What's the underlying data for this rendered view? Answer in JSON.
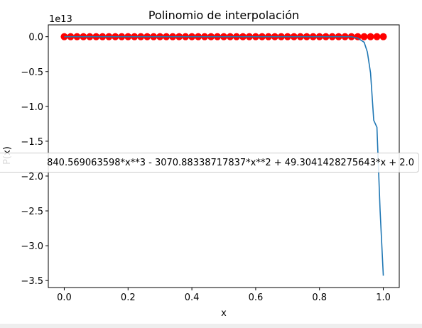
{
  "chart_data": {
    "type": "scatter",
    "title": "Polinomio de interpolación",
    "xlabel": "x",
    "ylabel": "P(x)",
    "offset_text": "1e13",
    "xlim": [
      -0.05,
      1.05
    ],
    "ylim": [
      -3.6,
      0.17
    ],
    "x_ticks": [
      0.0,
      0.2,
      0.4,
      0.6,
      0.8,
      1.0
    ],
    "x_tick_labels": [
      "0.0",
      "0.2",
      "0.4",
      "0.6",
      "0.8",
      "1.0"
    ],
    "y_ticks": [
      0.0,
      -0.5,
      -1.0,
      -1.5,
      -2.0,
      -2.5,
      -3.0,
      -3.5
    ],
    "y_tick_labels": [
      "0.0",
      "−0.5",
      "−1.0",
      "−1.5",
      "−2.0",
      "−2.5",
      "−3.0",
      "−3.5"
    ],
    "legend_label": "840.569063598*x**3 - 3070.88338717837*x**2 + 49.3041428275643*x + 2.0",
    "series": [
      {
        "kind": "scatter",
        "color": "#ff0000",
        "x": [
          0.0,
          0.02,
          0.04,
          0.06,
          0.08,
          0.1,
          0.12,
          0.14,
          0.16,
          0.18,
          0.2,
          0.22,
          0.24,
          0.26,
          0.28,
          0.3,
          0.32,
          0.34,
          0.36,
          0.38,
          0.4,
          0.42,
          0.44,
          0.46,
          0.48,
          0.5,
          0.52,
          0.54,
          0.56,
          0.58,
          0.6,
          0.62,
          0.64,
          0.66,
          0.68,
          0.7,
          0.72,
          0.74,
          0.76,
          0.78,
          0.8,
          0.82,
          0.84,
          0.86,
          0.88,
          0.9,
          0.92,
          0.94,
          0.96,
          0.98,
          1.0
        ],
        "y": [
          0,
          0,
          0,
          0,
          0,
          0,
          0,
          0,
          0,
          0,
          0,
          0,
          0,
          0,
          0,
          0,
          0,
          0,
          0,
          0,
          0,
          0,
          0,
          0,
          0,
          0,
          0,
          0,
          0,
          0,
          0,
          0,
          0,
          0,
          0,
          0,
          0,
          0,
          0,
          0,
          0,
          0,
          0,
          0,
          0,
          0,
          0,
          0,
          0,
          0,
          0
        ]
      },
      {
        "kind": "line",
        "color": "#1f77b4",
        "x": [
          0.0,
          0.1,
          0.2,
          0.3,
          0.4,
          0.5,
          0.6,
          0.7,
          0.8,
          0.85,
          0.9,
          0.92,
          0.94,
          0.95,
          0.96,
          0.97,
          0.98,
          0.99,
          1.0
        ],
        "y": [
          0,
          0,
          0,
          0,
          0,
          0,
          0,
          0,
          0,
          0,
          0,
          -0.02,
          -0.08,
          -0.22,
          -0.52,
          -1.2,
          -1.3,
          -2.5,
          -3.43
        ]
      }
    ]
  }
}
